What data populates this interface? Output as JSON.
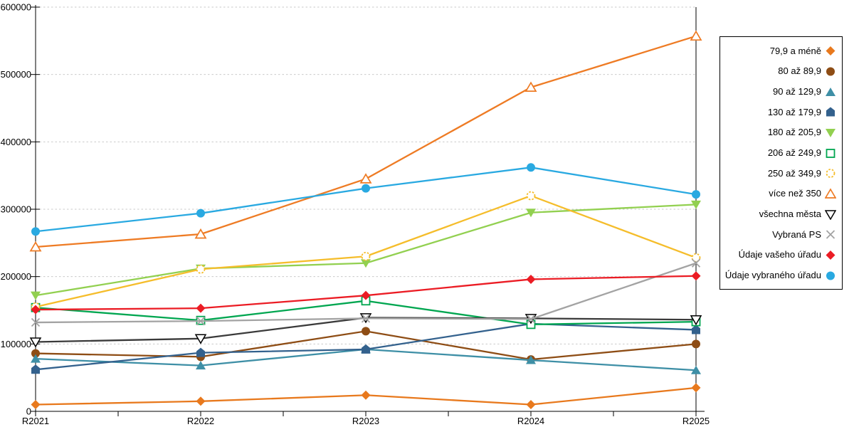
{
  "chart_data": {
    "type": "line",
    "title": "",
    "xlabel": "",
    "ylabel": "",
    "categories": [
      "R2021",
      "R2022",
      "R2023",
      "R2024",
      "R2025"
    ],
    "ylim": [
      0,
      600000
    ],
    "yticks": [
      0,
      100000,
      200000,
      300000,
      400000,
      500000,
      600000
    ],
    "grid": "horizontal-dashed",
    "legend_position": "right",
    "series": [
      {
        "label": "79,9 a méně",
        "marker": "diamond",
        "color": "#E8791D",
        "values": [
          10000,
          15000,
          24000,
          10000,
          35000
        ]
      },
      {
        "label": "80 až 89,9",
        "marker": "circle",
        "color": "#8E4D15",
        "values": [
          86000,
          81000,
          119000,
          77000,
          100000
        ]
      },
      {
        "label": "90 až 129,9",
        "marker": "triangle-up",
        "color": "#3E8FA6",
        "values": [
          78000,
          68000,
          92000,
          76000,
          61000
        ]
      },
      {
        "label": "130 až 179,9",
        "marker": "pentagon",
        "color": "#33618D",
        "values": [
          62000,
          87000,
          92000,
          130000,
          121000
        ]
      },
      {
        "label": "180 až 205,9",
        "marker": "triangle-down",
        "color": "#92D050",
        "values": [
          172000,
          212000,
          220000,
          295000,
          307000
        ]
      },
      {
        "label": "206 až 249,9",
        "marker": "square-open",
        "color": "#00A650",
        "values": [
          154000,
          135000,
          164000,
          129000,
          133000
        ]
      },
      {
        "label": "250 až 349,9",
        "marker": "circle-open-dashed",
        "color": "#F5BD2B",
        "values": [
          155000,
          211000,
          230000,
          320000,
          228000
        ]
      },
      {
        "label": "více než 350",
        "marker": "triangle-open",
        "color": "#EE7B24",
        "values": [
          244000,
          263000,
          345000,
          481000,
          557000
        ]
      },
      {
        "label": "všechna města",
        "marker": "triangle-down-open",
        "color": "#3A3A3A",
        "values": [
          103000,
          108000,
          139000,
          138000,
          136000
        ]
      },
      {
        "label": "Vybraná PS",
        "marker": "x",
        "color": "#A3A3A3",
        "values": [
          132000,
          134000,
          138000,
          137000,
          220000
        ]
      },
      {
        "label": "Údaje vašeho úřadu",
        "marker": "diamond",
        "color": "#EB1C24",
        "values": [
          151000,
          153000,
          172000,
          196000,
          201000
        ]
      },
      {
        "label": "Údaje vybraného úřadu",
        "marker": "circle",
        "color": "#29A9E1",
        "values": [
          267000,
          294000,
          331000,
          362000,
          322000
        ]
      }
    ]
  },
  "colors": {
    "background": "#FFFFFF",
    "axis": "#000000",
    "gridline": "#C9C9C9",
    "legend_border": "#000000"
  }
}
